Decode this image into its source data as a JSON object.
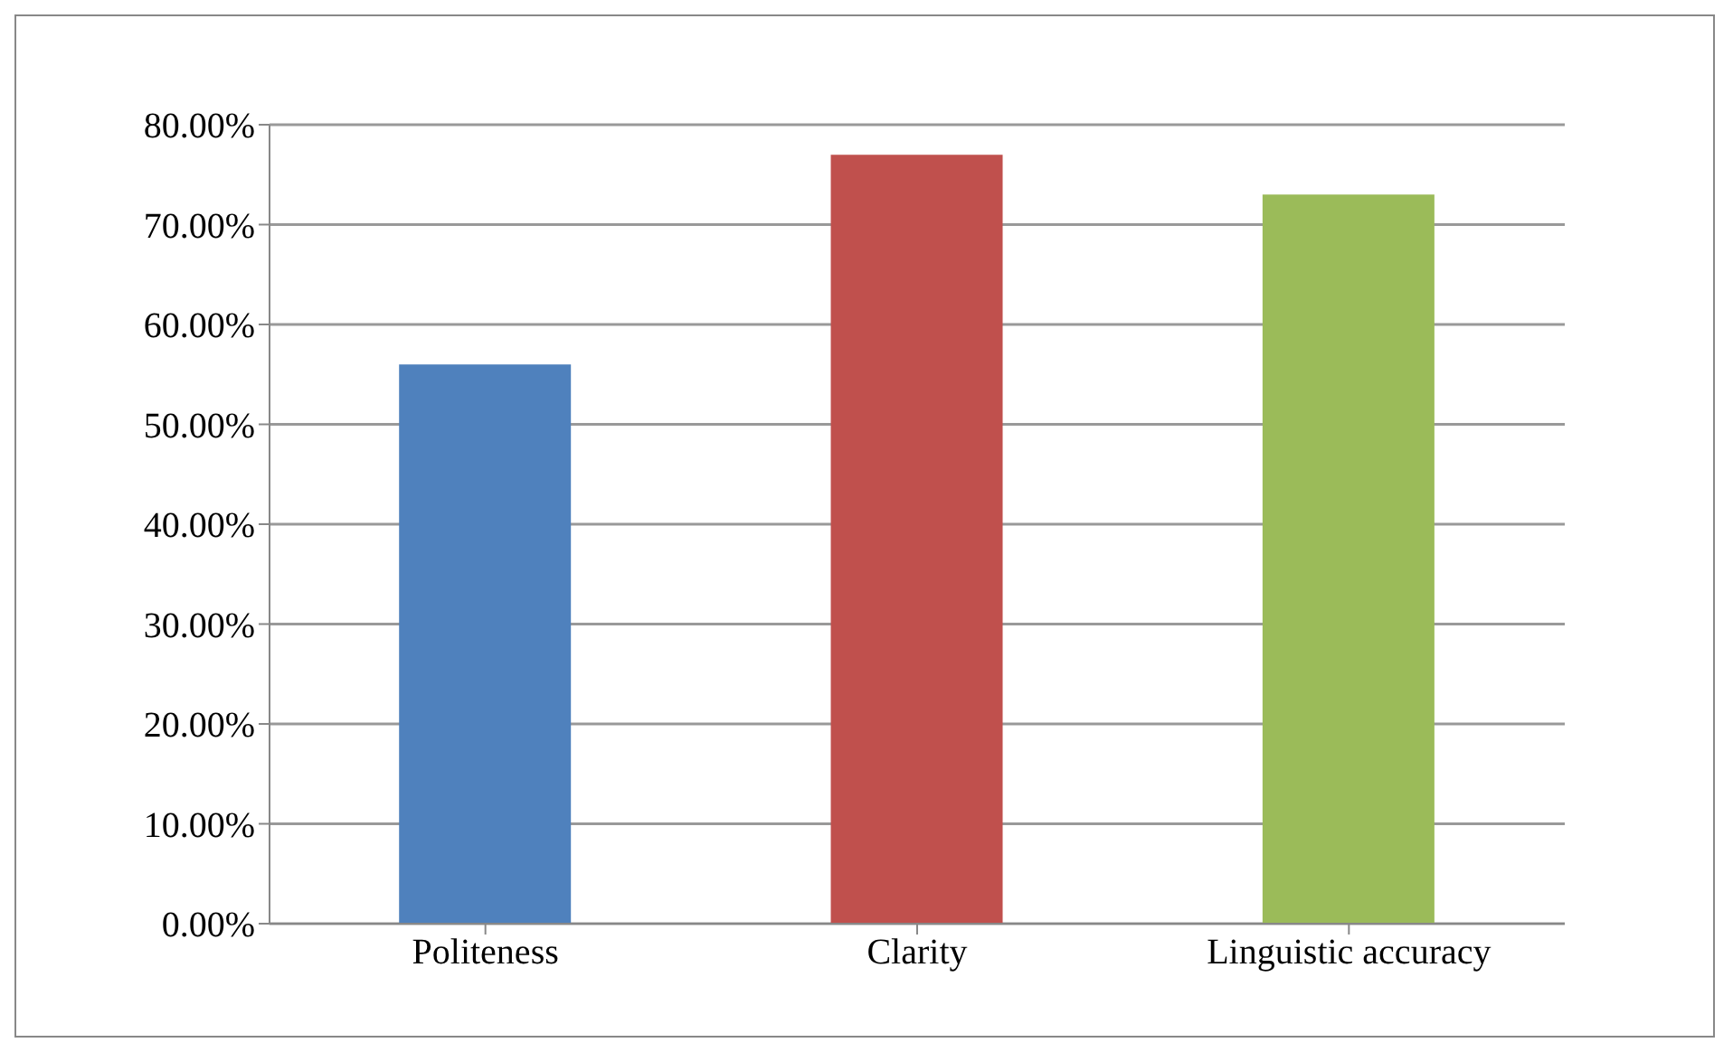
{
  "chart_data": {
    "type": "bar",
    "categories": [
      "Politeness",
      "Clarity",
      "Linguistic accuracy"
    ],
    "values": [
      56,
      77,
      73
    ],
    "colors": [
      "#4f81bd",
      "#c0504d",
      "#9bbb59"
    ],
    "ylim": [
      0,
      80
    ],
    "yticks": [
      {
        "value": 0,
        "label": "0.00%"
      },
      {
        "value": 10,
        "label": "10.00%"
      },
      {
        "value": 20,
        "label": "20.00%"
      },
      {
        "value": 30,
        "label": "30.00%"
      },
      {
        "value": 40,
        "label": "40.00%"
      },
      {
        "value": 50,
        "label": "50.00%"
      },
      {
        "value": 60,
        "label": "60.00%"
      },
      {
        "value": 70,
        "label": "70.00%"
      },
      {
        "value": 80,
        "label": "80.00%"
      }
    ],
    "grid": "y"
  }
}
